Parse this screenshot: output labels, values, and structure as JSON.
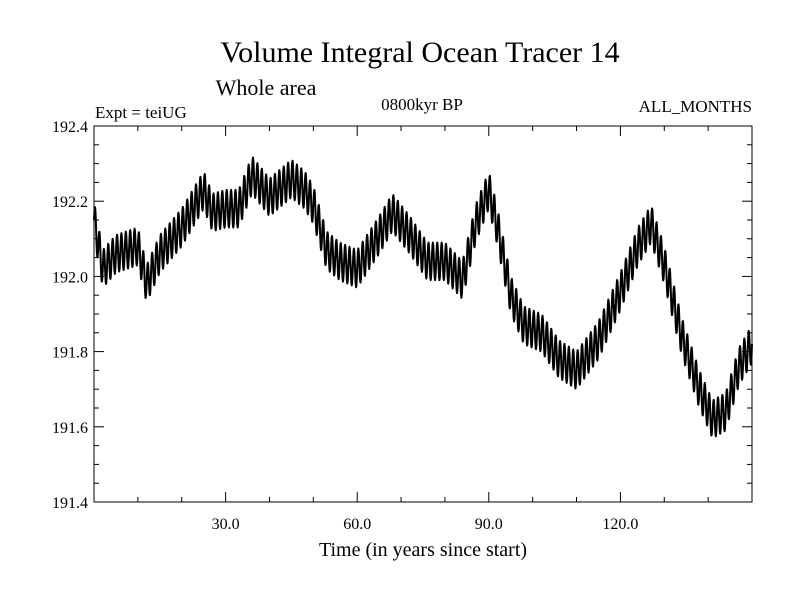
{
  "chart_data": {
    "type": "line",
    "title": "Volume Integral Ocean Tracer 14",
    "subtitle": "Whole area",
    "left_label": "Expt = teiUG",
    "center_label": "0800kyr BP",
    "right_label": "ALL_MONTHS",
    "xlabel": "Time (in years since start)",
    "ylabel": "",
    "xlim": [
      0,
      150
    ],
    "ylim": [
      191.4,
      192.4
    ],
    "x_ticks": [
      30,
      60,
      90,
      120
    ],
    "x_tick_labels": [
      "30.0",
      "60.0",
      "90.0",
      "120.0"
    ],
    "y_ticks": [
      191.4,
      191.6,
      191.8,
      192.0,
      192.2,
      192.4
    ],
    "y_tick_labels": [
      "191.4",
      "191.6",
      "191.8",
      "192.0",
      "192.2",
      "192.4"
    ],
    "grid": false,
    "line_color": "#000000",
    "seasonal_amplitude": 0.05,
    "series": [
      {
        "x": [
          0,
          2,
          5,
          10,
          12,
          15,
          20,
          25,
          27,
          30,
          33,
          36,
          40,
          45,
          48,
          50,
          53,
          56,
          60,
          65,
          68,
          72,
          76,
          80,
          84,
          87,
          90,
          92,
          95,
          98,
          102,
          106,
          110,
          115,
          120,
          124,
          127,
          130,
          134,
          138,
          141,
          144,
          147,
          150
        ],
        "values": [
          192.15,
          192.02,
          192.06,
          192.08,
          191.98,
          192.06,
          192.13,
          192.23,
          192.17,
          192.18,
          192.18,
          192.27,
          192.21,
          192.26,
          192.23,
          192.19,
          192.07,
          192.04,
          192.02,
          192.11,
          192.17,
          192.11,
          192.04,
          192.04,
          191.99,
          192.14,
          192.23,
          192.13,
          191.95,
          191.87,
          191.85,
          191.78,
          191.75,
          191.83,
          191.96,
          192.08,
          192.14,
          192.03,
          191.84,
          191.7,
          191.62,
          191.64,
          191.76,
          191.82
        ]
      }
    ]
  }
}
